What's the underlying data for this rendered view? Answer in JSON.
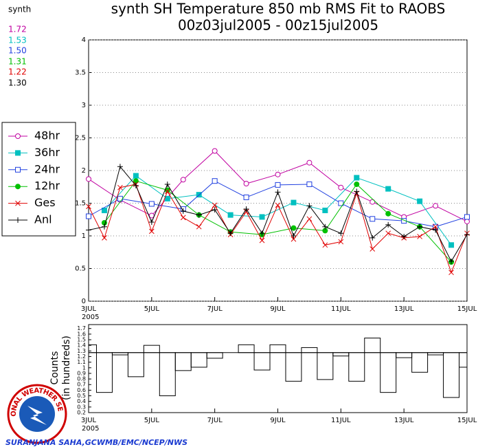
{
  "chart_data": [
    {
      "type": "line",
      "title": "synth SH Temperature 850 mb RMS Fit to RAOBS",
      "subtitle": "00z03jul2005 - 00z15jul2005",
      "xlim": [
        3,
        15
      ],
      "xticks": [
        {
          "value": 3,
          "label": "3JUL"
        },
        {
          "value": 5,
          "label": "5JUL"
        },
        {
          "value": 7,
          "label": "7JUL"
        },
        {
          "value": 9,
          "label": "9JUL"
        },
        {
          "value": 11,
          "label": "11JUL"
        },
        {
          "value": 13,
          "label": "13JUL"
        },
        {
          "value": 15,
          "label": "15JUL"
        }
      ],
      "xtick_year": "2005",
      "ylim": [
        0,
        4
      ],
      "yticks": [
        0,
        0.5,
        1,
        1.5,
        2,
        2.5,
        3,
        3.5,
        4
      ],
      "grid": true,
      "series": [
        {
          "name": "48hr",
          "color": "#c000a0",
          "marker": "open-circle",
          "x": [
            3,
            4,
            5,
            6,
            7,
            8,
            9,
            10,
            11,
            12,
            13,
            14,
            15
          ],
          "values": [
            1.87,
            1.55,
            1.31,
            1.86,
            2.3,
            1.8,
            1.94,
            2.12,
            1.74,
            1.52,
            1.29,
            1.46,
            1.22
          ]
        },
        {
          "name": "36hr",
          "color": "#00c0c0",
          "marker": "filled-square",
          "x": [
            3.5,
            4.5,
            5.5,
            6.5,
            7.5,
            8.5,
            9.5,
            10.5,
            11.5,
            12.5,
            13.5,
            14.5
          ],
          "values": [
            1.39,
            1.92,
            1.57,
            1.63,
            1.32,
            1.29,
            1.51,
            1.39,
            1.89,
            1.72,
            1.53,
            0.86
          ]
        },
        {
          "name": "24hr",
          "color": "#2040e0",
          "marker": "open-square",
          "x": [
            3,
            4,
            5,
            6,
            7,
            8,
            9,
            10,
            11,
            12,
            13,
            14,
            15
          ],
          "values": [
            1.3,
            1.57,
            1.49,
            1.41,
            1.84,
            1.59,
            1.78,
            1.79,
            1.5,
            1.26,
            1.23,
            1.14,
            1.29
          ]
        },
        {
          "name": "12hr",
          "color": "#00c000",
          "marker": "filled-circle",
          "x": [
            3.5,
            4.5,
            5.5,
            6.5,
            7.5,
            8.5,
            9.5,
            10.5,
            11.5,
            12.5,
            13.5,
            14.5
          ],
          "values": [
            1.2,
            1.84,
            1.7,
            1.32,
            1.06,
            1.02,
            1.12,
            1.08,
            1.79,
            1.34,
            1.14,
            0.6
          ]
        },
        {
          "name": "Ges",
          "color": "#e00000",
          "marker": "cross",
          "x": [
            3,
            3.5,
            4,
            4.5,
            5,
            5.5,
            6,
            6.5,
            7,
            7.5,
            8,
            8.5,
            9,
            9.5,
            10,
            10.5,
            11,
            11.5,
            12,
            12.5,
            13,
            13.5,
            14,
            14.5,
            15
          ],
          "values": [
            1.45,
            0.97,
            1.74,
            1.79,
            1.07,
            1.68,
            1.28,
            1.14,
            1.47,
            1.02,
            1.37,
            0.93,
            1.47,
            0.95,
            1.26,
            0.86,
            0.91,
            1.65,
            0.8,
            1.04,
            0.97,
            0.99,
            1.14,
            0.44,
            1.04
          ]
        },
        {
          "name": "Anl",
          "color": "#000000",
          "marker": "plus",
          "x": [
            3,
            3.5,
            4,
            4.5,
            5,
            5.5,
            6,
            6.5,
            7,
            7.5,
            8,
            8.5,
            9,
            9.5,
            10,
            10.5,
            11,
            11.5,
            12,
            12.5,
            13,
            13.5,
            14,
            14.5,
            15
          ],
          "values": [
            1.09,
            1.14,
            2.06,
            1.77,
            1.21,
            1.79,
            1.38,
            1.32,
            1.4,
            1.04,
            1.41,
            1.04,
            1.67,
            1.0,
            1.46,
            1.14,
            1.04,
            1.68,
            0.97,
            1.17,
            0.99,
            1.14,
            1.09,
            0.61,
            1.02
          ]
        }
      ]
    },
    {
      "type": "bar",
      "ylabel": "Counts",
      "ylabel2": "(in hundreds)",
      "x": [
        3,
        3.5,
        4,
        4.5,
        5,
        5.5,
        6,
        6.5,
        7,
        7.5,
        8,
        8.5,
        9,
        9.5,
        10,
        10.5,
        11,
        11.5,
        12,
        12.5,
        13,
        13.5,
        14,
        14.5,
        15
      ],
      "values": [
        1.41,
        0.56,
        1.23,
        0.84,
        1.4,
        0.5,
        0.95,
        1.01,
        1.17,
        1.27,
        1.41,
        0.96,
        1.41,
        0.76,
        1.36,
        0.79,
        1.21,
        0.76,
        1.53,
        0.56,
        1.18,
        0.92,
        1.23,
        0.47,
        1.01
      ],
      "baseline": 1.27,
      "xlim": [
        3,
        15
      ],
      "xticks": [
        {
          "value": 3,
          "label": "3JUL"
        },
        {
          "value": 5,
          "label": "5JUL"
        },
        {
          "value": 7,
          "label": "7JUL"
        },
        {
          "value": 9,
          "label": "9JUL"
        },
        {
          "value": 11,
          "label": "11JUL"
        },
        {
          "value": 13,
          "label": "13JUL"
        },
        {
          "value": 15,
          "label": "15JUL"
        }
      ],
      "xtick_year": "2005",
      "ylim": [
        0.2,
        1.77
      ],
      "yticks": [
        0.2,
        0.3,
        0.4,
        0.5,
        0.6,
        0.7,
        0.8,
        0.9,
        1,
        1.1,
        1.2,
        1.3,
        1.4,
        1.5,
        1.6,
        1.7
      ]
    }
  ],
  "summary": {
    "title": "synth",
    "values": [
      1.72,
      1.53,
      1.5,
      1.31,
      1.22,
      1.3
    ],
    "value_labels": [
      "1.72",
      "1.53",
      "1.50",
      "1.31",
      "1.22",
      "1.30"
    ]
  },
  "logo": {
    "text": "NATIONAL WEATHER SERVICE"
  },
  "credit": "SURANJANA SAHA,GCWMB/EMC/NCEP/NWS"
}
